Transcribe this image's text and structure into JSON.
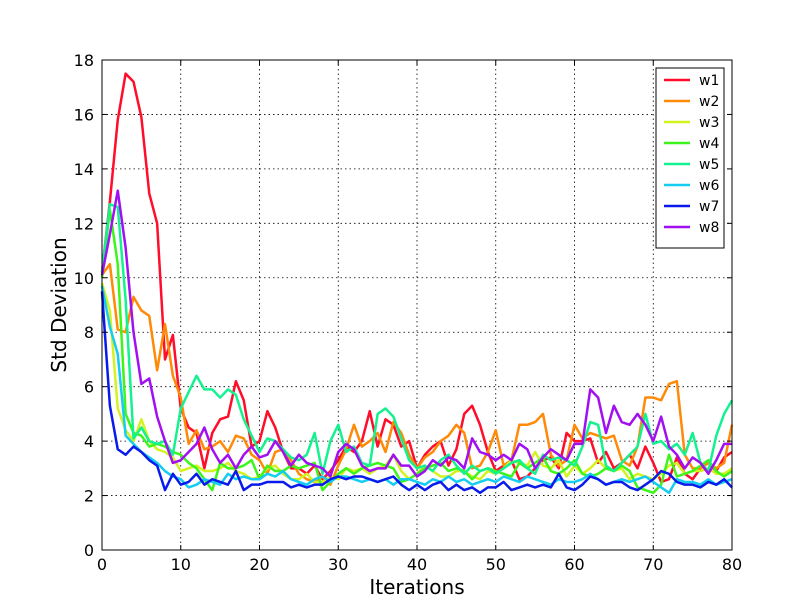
{
  "chart_data": {
    "type": "line",
    "xlabel": "Iterations",
    "ylabel": "Std Deviation",
    "xlim": [
      0,
      80
    ],
    "ylim": [
      0,
      18
    ],
    "xticks": [
      "0",
      "10",
      "20",
      "30",
      "40",
      "50",
      "60",
      "70",
      "80"
    ],
    "yticks": [
      "0",
      "2",
      "4",
      "6",
      "8",
      "10",
      "12",
      "14",
      "16",
      "18"
    ],
    "grid": true,
    "legend_position": "top-right",
    "x": [
      0,
      1,
      2,
      3,
      4,
      5,
      6,
      7,
      8,
      9,
      10,
      11,
      12,
      13,
      14,
      15,
      16,
      17,
      18,
      19,
      20,
      21,
      22,
      23,
      24,
      25,
      26,
      27,
      28,
      29,
      30,
      31,
      32,
      33,
      34,
      35,
      36,
      37,
      38,
      39,
      40,
      41,
      42,
      43,
      44,
      45,
      46,
      47,
      48,
      49,
      50,
      51,
      52,
      53,
      54,
      55,
      56,
      57,
      58,
      59,
      60,
      61,
      62,
      63,
      64,
      65,
      66,
      67,
      68,
      69,
      70,
      71,
      72,
      73,
      74,
      75,
      76,
      77,
      78,
      79,
      80
    ],
    "series": [
      {
        "name": "w1",
        "color": "#ff0d2a",
        "values": [
          10.2,
          12.8,
          15.8,
          17.5,
          17.2,
          15.9,
          13.1,
          12.0,
          7.0,
          7.9,
          5.2,
          4.5,
          4.3,
          3.0,
          4.3,
          4.8,
          4.9,
          6.2,
          5.5,
          3.8,
          4.0,
          5.1,
          4.5,
          3.6,
          3.0,
          3.0,
          2.8,
          3.1,
          2.6,
          2.9,
          3.3,
          3.8,
          3.6,
          4.0,
          5.1,
          3.8,
          4.8,
          4.6,
          3.8,
          4.0,
          3.0,
          3.5,
          3.8,
          4.0,
          3.1,
          3.7,
          5.0,
          5.3,
          4.6,
          3.6,
          2.9,
          3.1,
          3.3,
          2.6,
          2.7,
          3.0,
          3.3,
          3.4,
          3.0,
          4.3,
          4.0,
          4.0,
          4.1,
          3.2,
          3.6,
          3.0,
          3.2,
          3.5,
          3.0,
          3.8,
          3.2,
          2.5,
          2.6,
          3.4,
          2.8,
          2.6,
          3.0,
          3.2,
          2.9,
          3.4,
          3.6
        ]
      },
      {
        "name": "w2",
        "color": "#ff8a08",
        "values": [
          10.1,
          10.5,
          8.1,
          8.0,
          9.3,
          8.8,
          8.6,
          6.6,
          8.3,
          6.4,
          5.6,
          3.9,
          4.4,
          3.7,
          3.8,
          4.0,
          3.6,
          4.2,
          4.1,
          3.5,
          3.3,
          2.8,
          3.6,
          3.7,
          3.3,
          2.8,
          2.6,
          2.5,
          2.7,
          2.4,
          3.1,
          3.7,
          4.6,
          3.8,
          4.0,
          4.3,
          3.6,
          4.7,
          4.3,
          3.5,
          3.0,
          3.4,
          3.6,
          4.0,
          4.2,
          4.6,
          4.3,
          3.0,
          3.1,
          3.6,
          4.4,
          3.1,
          3.3,
          4.6,
          4.6,
          4.7,
          5.0,
          3.5,
          3.1,
          3.3,
          4.6,
          4.1,
          4.3,
          4.2,
          4.1,
          4.2,
          3.3,
          3.1,
          3.8,
          5.6,
          5.6,
          5.5,
          6.1,
          6.2,
          3.5,
          3.0,
          3.0,
          3.2,
          3.0,
          3.2,
          4.6
        ]
      },
      {
        "name": "w3",
        "color": "#d4f21f",
        "values": [
          9.8,
          8.8,
          5.2,
          4.4,
          4.0,
          4.8,
          4.0,
          3.7,
          3.6,
          3.4,
          2.9,
          3.0,
          3.1,
          2.9,
          2.9,
          3.0,
          3.2,
          2.9,
          2.8,
          2.6,
          2.7,
          3.0,
          3.1,
          2.8,
          2.6,
          2.6,
          2.8,
          2.5,
          2.5,
          2.7,
          2.6,
          3.0,
          2.9,
          3.0,
          2.8,
          3.0,
          3.1,
          3.5,
          2.9,
          2.6,
          2.8,
          3.1,
          2.9,
          2.7,
          2.7,
          2.9,
          2.9,
          2.7,
          2.6,
          2.9,
          2.8,
          3.0,
          3.3,
          3.2,
          3.1,
          3.6,
          3.1,
          3.0,
          3.3,
          2.7,
          3.1,
          2.8,
          3.0,
          3.3,
          3.0,
          2.9,
          3.0,
          2.6,
          2.8,
          2.7,
          2.6,
          2.8,
          3.1,
          3.2,
          2.8,
          2.9,
          2.9,
          3.0,
          2.8,
          2.8,
          3.0
        ]
      },
      {
        "name": "w4",
        "color": "#3df51a",
        "values": [
          10.0,
          12.5,
          10.5,
          5.0,
          4.3,
          4.2,
          3.8,
          3.9,
          3.8,
          3.6,
          3.5,
          3.2,
          3.0,
          2.6,
          2.2,
          3.2,
          3.0,
          3.0,
          3.1,
          3.3,
          2.6,
          3.1,
          2.9,
          2.9,
          3.1,
          3.0,
          3.1,
          3.2,
          2.2,
          2.5,
          2.8,
          3.0,
          2.8,
          3.0,
          3.1,
          3.2,
          3.1,
          3.0,
          2.5,
          2.6,
          2.8,
          3.0,
          3.1,
          3.2,
          2.9,
          3.0,
          2.9,
          2.6,
          2.9,
          3.0,
          2.9,
          2.8,
          2.7,
          3.2,
          3.0,
          3.2,
          3.4,
          2.9,
          2.8,
          3.0,
          3.3,
          2.8,
          2.7,
          2.8,
          3.0,
          2.9,
          3.1,
          2.9,
          2.3,
          2.2,
          2.1,
          2.4,
          3.5,
          2.7,
          2.8,
          2.9,
          3.1,
          3.3,
          2.9,
          2.7,
          2.9
        ]
      },
      {
        "name": "w5",
        "color": "#14f290",
        "values": [
          10.2,
          12.7,
          12.6,
          9.2,
          4.1,
          4.5,
          4.0,
          3.9,
          4.0,
          3.5,
          5.2,
          5.8,
          6.4,
          5.9,
          5.9,
          5.6,
          5.9,
          5.7,
          4.8,
          4.2,
          3.6,
          4.1,
          4.0,
          3.7,
          3.4,
          3.3,
          3.5,
          4.3,
          2.8,
          4.0,
          4.6,
          3.6,
          3.8,
          3.2,
          3.1,
          5.0,
          5.2,
          4.9,
          4.1,
          3.3,
          3.0,
          3.1,
          2.9,
          3.3,
          3.5,
          3.1,
          2.8,
          3.1,
          2.9,
          3.0,
          2.8,
          3.0,
          3.2,
          3.3,
          3.0,
          2.8,
          3.5,
          3.3,
          3.4,
          3.3,
          3.1,
          3.8,
          4.7,
          4.6,
          3.1,
          2.9,
          3.2,
          3.5,
          3.8,
          5.0,
          3.9,
          4.0,
          3.7,
          3.9,
          3.5,
          4.3,
          3.2,
          2.9,
          4.2,
          5.0,
          5.5
        ]
      },
      {
        "name": "w6",
        "color": "#14cdf0",
        "values": [
          9.7,
          8.2,
          7.2,
          4.2,
          3.9,
          3.6,
          3.4,
          3.2,
          2.9,
          2.7,
          2.6,
          2.3,
          2.4,
          2.6,
          2.5,
          2.4,
          2.8,
          2.6,
          2.7,
          2.6,
          2.6,
          2.8,
          2.7,
          2.9,
          2.6,
          2.5,
          2.4,
          2.6,
          2.7,
          2.5,
          2.7,
          2.7,
          2.6,
          2.5,
          2.6,
          2.5,
          2.6,
          2.4,
          2.6,
          2.6,
          2.5,
          2.4,
          2.6,
          2.5,
          2.7,
          2.5,
          2.6,
          2.4,
          2.5,
          2.6,
          2.5,
          2.7,
          2.6,
          2.5,
          2.7,
          2.6,
          2.5,
          2.4,
          2.6,
          2.5,
          2.5,
          2.6,
          2.8,
          2.6,
          2.4,
          2.5,
          2.6,
          2.5,
          2.6,
          2.7,
          2.5,
          2.3,
          2.1,
          2.6,
          2.5,
          2.5,
          2.4,
          2.6,
          2.4,
          2.5,
          2.6
        ]
      },
      {
        "name": "w7",
        "color": "#0a1aeb",
        "values": [
          9.5,
          5.3,
          3.7,
          3.5,
          3.8,
          3.6,
          3.3,
          3.1,
          2.2,
          2.8,
          2.4,
          2.5,
          2.8,
          2.4,
          2.6,
          2.5,
          2.4,
          2.9,
          2.2,
          2.4,
          2.4,
          2.5,
          2.5,
          2.5,
          2.3,
          2.4,
          2.3,
          2.4,
          2.4,
          2.6,
          2.7,
          2.6,
          2.7,
          2.7,
          2.6,
          2.5,
          2.6,
          2.7,
          2.4,
          2.2,
          2.4,
          2.2,
          2.4,
          2.5,
          2.2,
          2.4,
          2.2,
          2.3,
          2.1,
          2.3,
          2.3,
          2.5,
          2.2,
          2.3,
          2.4,
          2.3,
          2.4,
          2.3,
          2.8,
          2.3,
          2.2,
          2.4,
          2.7,
          2.6,
          2.4,
          2.5,
          2.5,
          2.3,
          2.2,
          2.4,
          2.6,
          2.9,
          2.8,
          2.5,
          2.4,
          2.4,
          2.3,
          2.5,
          2.4,
          2.6,
          2.3
        ]
      },
      {
        "name": "w8",
        "color": "#a010f0",
        "values": [
          10.1,
          11.6,
          13.2,
          11.1,
          8.0,
          6.1,
          6.3,
          4.9,
          4.0,
          3.2,
          3.3,
          3.6,
          3.9,
          4.5,
          3.7,
          3.2,
          3.5,
          3.0,
          3.5,
          3.8,
          3.4,
          3.5,
          4.0,
          3.6,
          3.1,
          3.5,
          3.2,
          3.1,
          3.0,
          2.7,
          3.6,
          3.9,
          3.7,
          3.1,
          2.9,
          3.0,
          3.0,
          3.5,
          3.1,
          3.1,
          2.7,
          2.9,
          3.3,
          3.1,
          3.4,
          3.3,
          3.0,
          4.1,
          3.6,
          3.5,
          3.3,
          3.5,
          3.3,
          3.9,
          3.7,
          3.0,
          3.4,
          3.7,
          3.5,
          3.3,
          3.9,
          3.9,
          5.9,
          5.6,
          4.3,
          5.3,
          4.7,
          4.6,
          5.0,
          4.6,
          4.0,
          4.9,
          3.8,
          3.5,
          3.0,
          3.4,
          3.2,
          2.8,
          3.3,
          3.9,
          3.9
        ]
      }
    ]
  }
}
